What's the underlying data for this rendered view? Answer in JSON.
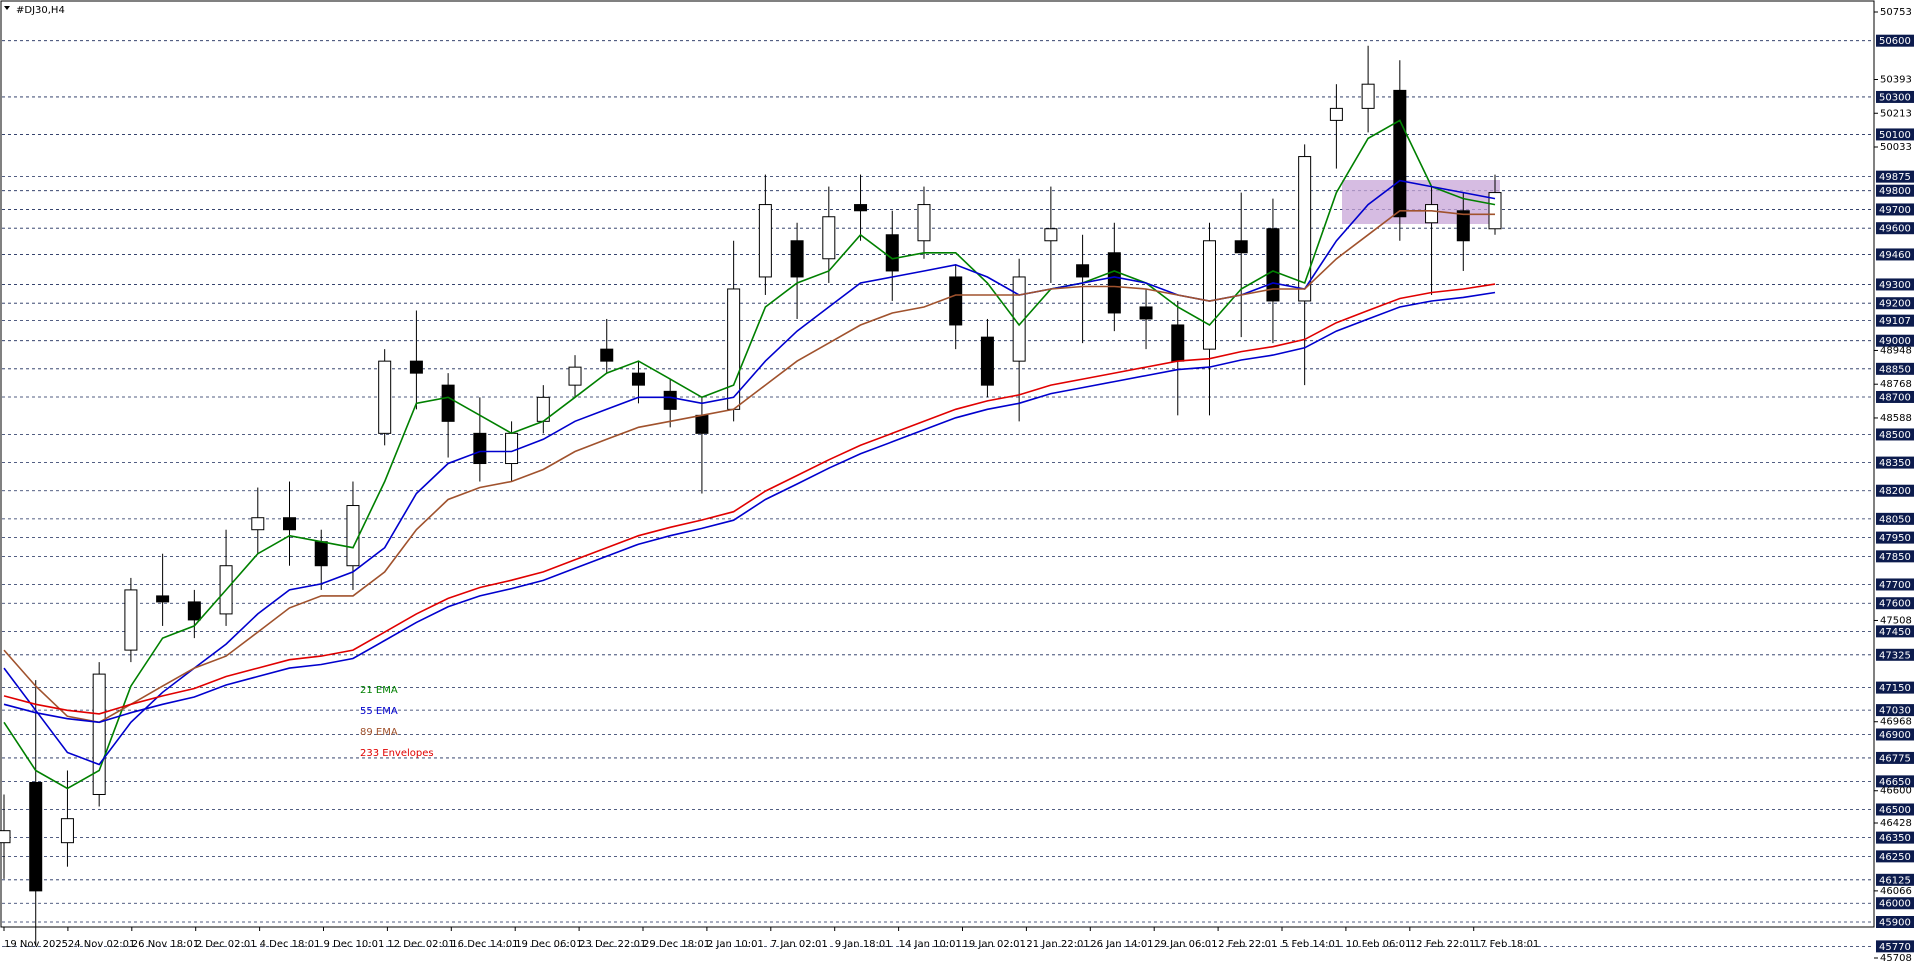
{
  "chart_data": {
    "type": "candlestick",
    "title": "#DJ30,H4",
    "open": [
      46323,
      46644,
      46323,
      46580,
      47350,
      47639,
      47607,
      47543,
      47992,
      48056,
      47928,
      47800,
      48506,
      48891,
      48763,
      48506,
      48345,
      48570,
      48763,
      48955,
      48827,
      48730,
      48602,
      48634,
      49340,
      49533,
      49437,
      49726,
      49565,
      49533,
      49340,
      49019,
      48891,
      49533,
      49405,
      49469,
      49180,
      49084,
      48955,
      49533,
      49597,
      49212,
      50175,
      50239,
      50335,
      49629,
      49693,
      49597
    ],
    "high": [
      46580,
      47190,
      46708,
      47286,
      47735,
      47864,
      47671,
      47992,
      48217,
      48249,
      47992,
      48249,
      48955,
      49161,
      48827,
      48698,
      48570,
      48763,
      48923,
      49116,
      48891,
      48795,
      48698,
      49533,
      49886,
      49629,
      49822,
      49886,
      49693,
      49822,
      49405,
      49116,
      49437,
      49822,
      49565,
      49629,
      49276,
      49212,
      49629,
      49790,
      49758,
      50047,
      50368,
      50573,
      50496,
      49822,
      49790,
      49886
    ],
    "low": [
      46130,
      45777,
      46195,
      46516,
      47286,
      47479,
      47414,
      47479,
      47864,
      47800,
      47671,
      47671,
      48442,
      48634,
      48377,
      48249,
      48249,
      48506,
      48698,
      48827,
      48666,
      48538,
      48185,
      48570,
      49244,
      49116,
      49308,
      49533,
      49212,
      49437,
      48955,
      48698,
      48570,
      49308,
      48987,
      49051,
      48955,
      48602,
      48602,
      49019,
      48987,
      48763,
      49918,
      50111,
      49533,
      49244,
      49372,
      49565
    ],
    "close": [
      46387,
      46066,
      46451,
      47222,
      47671,
      47607,
      47511,
      47800,
      48056,
      47992,
      47800,
      48121,
      48891,
      48827,
      48570,
      48345,
      48506,
      48698,
      48859,
      48891,
      48763,
      48634,
      48506,
      49276,
      49726,
      49340,
      49661,
      49693,
      49372,
      49726,
      49084,
      48763,
      49340,
      49597,
      49340,
      49148,
      49116,
      48891,
      49533,
      49469,
      49212,
      49982,
      50239,
      50368,
      49661,
      49726,
      49533,
      49790
    ],
    "series": [
      {
        "name": "21 EMA",
        "color": "#008000",
        "values": [
          46965,
          46708,
          46612,
          46708,
          47158,
          47414,
          47479,
          47671,
          47864,
          47960,
          47928,
          47896,
          48249,
          48666,
          48698,
          48602,
          48506,
          48570,
          48698,
          48827,
          48891,
          48795,
          48698,
          48763,
          49180,
          49308,
          49372,
          49565,
          49437,
          49469,
          49469,
          49308,
          49084,
          49276,
          49308,
          49372,
          49308,
          49180,
          49084,
          49276,
          49372,
          49308,
          49790,
          50079,
          50175,
          49822,
          49758,
          49726
        ]
      },
      {
        "name": "55 EMA",
        "color": "#0000cd",
        "values": [
          47254,
          47029,
          46804,
          46740,
          46965,
          47125,
          47254,
          47382,
          47543,
          47671,
          47703,
          47767,
          47896,
          48185,
          48345,
          48409,
          48409,
          48474,
          48570,
          48634,
          48698,
          48698,
          48666,
          48698,
          48891,
          49051,
          49180,
          49308,
          49340,
          49372,
          49405,
          49340,
          49244,
          49276,
          49308,
          49340,
          49308,
          49244,
          49212,
          49244,
          49308,
          49276,
          49533,
          49726,
          49854,
          49822,
          49790,
          49758
        ]
      },
      {
        "name": "89 EMA",
        "color": "#a0522d",
        "values": [
          47350,
          47158,
          46997,
          46965,
          47061,
          47158,
          47254,
          47318,
          47446,
          47575,
          47639,
          47639,
          47767,
          47992,
          48153,
          48217,
          48249,
          48313,
          48409,
          48474,
          48538,
          48570,
          48602,
          48634,
          48763,
          48891,
          48987,
          49084,
          49148,
          49180,
          49244,
          49244,
          49244,
          49276,
          49289,
          49289,
          49276,
          49244,
          49212,
          49244,
          49276,
          49276,
          49437,
          49565,
          49693,
          49693,
          49674,
          49674
        ]
      },
      {
        "name": "233 Envelopes",
        "color": "#e00000",
        "lower_color": "#0000cd",
        "values": [
          47106,
          47061,
          47029,
          47010,
          47061,
          47106,
          47145,
          47209,
          47254,
          47299,
          47318,
          47350,
          47446,
          47543,
          47626,
          47684,
          47723,
          47767,
          47832,
          47896,
          47960,
          48005,
          48044,
          48088,
          48198,
          48281,
          48365,
          48442,
          48506,
          48570,
          48634,
          48679,
          48711,
          48763,
          48795,
          48827,
          48859,
          48891,
          48904,
          48942,
          48968,
          49007,
          49096,
          49161,
          49225,
          49257,
          49276,
          49302
        ],
        "lower_values": [
          47061,
          47016,
          46984,
          46965,
          47016,
          47061,
          47100,
          47164,
          47209,
          47254,
          47273,
          47305,
          47401,
          47498,
          47581,
          47639,
          47678,
          47722,
          47787,
          47851,
          47915,
          47960,
          47999,
          48043,
          48153,
          48236,
          48320,
          48397,
          48461,
          48525,
          48589,
          48634,
          48666,
          48718,
          48750,
          48782,
          48814,
          48846,
          48859,
          48897,
          48923,
          48962,
          49051,
          49116,
          49180,
          49212,
          49231,
          49257
        ]
      }
    ],
    "ylim": [
      45708,
      50753
    ],
    "yticks": [
      50753,
      50393,
      50213,
      50033,
      48948,
      48768,
      48588,
      47508,
      46968,
      46600,
      46428,
      46066,
      45708
    ],
    "price_levels": [
      50600,
      50300,
      50100,
      49875,
      49800,
      49700,
      49600,
      49460,
      49300,
      49200,
      49107,
      49000,
      48850,
      48700,
      48500,
      48350,
      48200,
      48050,
      47950,
      47850,
      47700,
      47600,
      47450,
      47325,
      47150,
      47030,
      46900,
      46775,
      46650,
      46500,
      46350,
      46250,
      46125,
      46000,
      45900,
      45770
    ],
    "x_labels": [
      "19 Nov 2025",
      "24 Nov 02:01",
      "26 Nov 18:01",
      "2 Dec 02:01",
      "4 Dec 18:01",
      "9 Dec 10:01",
      "12 Dec 02:01",
      "16 Dec 14:01",
      "19 Dec 06:01",
      "23 Dec 22:01",
      "29 Dec 18:01",
      "2 Jan 10:01",
      "7 Jan 02:01",
      "9 Jan 18:01",
      "14 Jan 10:01",
      "19 Jan 02:01",
      "21 Jan 22:01",
      "26 Jan 14:01",
      "29 Jan 06:01",
      "2 Feb 22:01",
      "5 Feb 14:01",
      "10 Feb 06:01",
      "12 Feb 22:01",
      "17 Feb 18:01"
    ]
  }
}
